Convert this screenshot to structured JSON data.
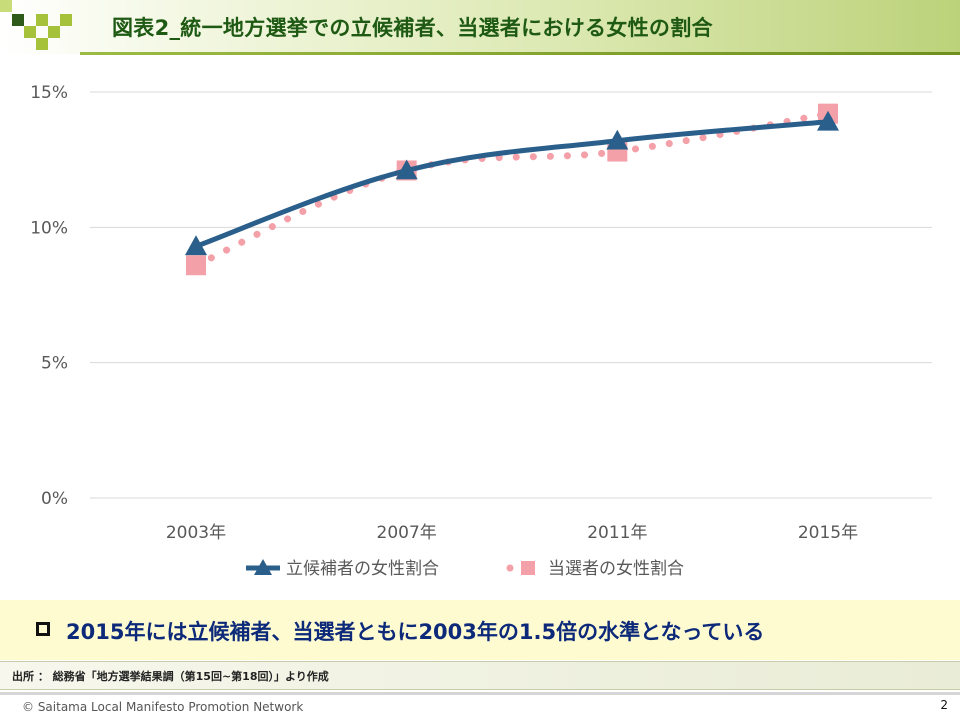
{
  "header": {
    "title": "図表2_統一地方選挙での立候補者、当選者における女性の割合"
  },
  "chart_data": {
    "type": "line",
    "title": "",
    "xlabel": "",
    "ylabel": "",
    "categories": [
      "2003年",
      "2007年",
      "2011年",
      "2015年"
    ],
    "ylim": [
      0,
      0.15
    ],
    "yticks": [
      {
        "value": 0,
        "label": "0%"
      },
      {
        "value": 0.05,
        "label": "5%"
      },
      {
        "value": 0.1,
        "label": "10%"
      },
      {
        "value": 0.15,
        "label": "15%"
      }
    ],
    "grid": true,
    "legend_position": "bottom",
    "series": [
      {
        "name": "立候補者の女性割合",
        "values": [
          0.093,
          0.121,
          0.132,
          0.139
        ],
        "color": "#2a5f8c",
        "marker": "triangle",
        "line": "solid"
      },
      {
        "name": "当選者の女性割合",
        "values": [
          0.086,
          0.121,
          0.128,
          0.142
        ],
        "color": "#f4a0a8",
        "marker": "square",
        "line": "dotted"
      }
    ]
  },
  "note": {
    "text": "2015年には立候補者、当選者ともに2003年の1.5倍の水準となっている"
  },
  "source": {
    "text": "出所 ： 総務省「地方選挙結果調（第15回~第18回）」より作成"
  },
  "footer": {
    "copyright": "© Saitama Local Manifesto Promotion Network",
    "page": "2"
  }
}
